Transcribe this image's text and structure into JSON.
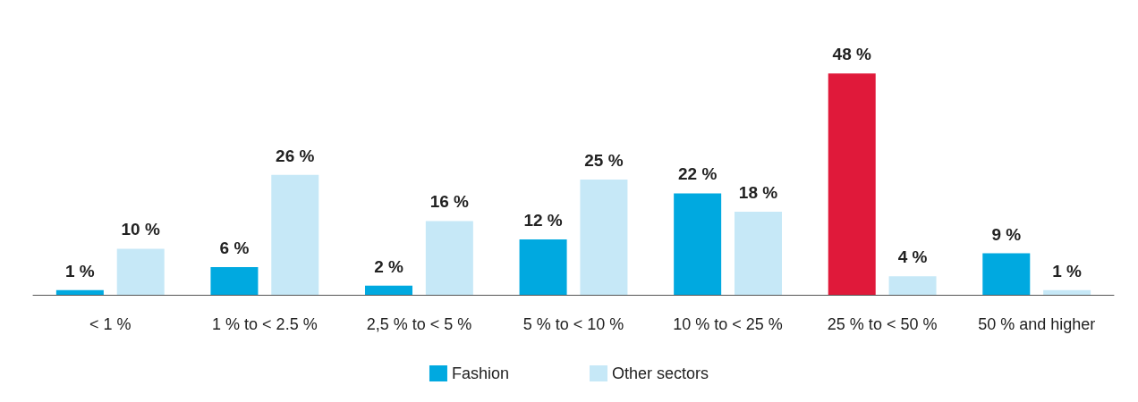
{
  "chart_data": {
    "type": "bar",
    "categories": [
      "< 1 %",
      "1 % to < 2.5 %",
      "2,5 % to < 5 %",
      "5 % to < 10 %",
      "10 % to < 25 %",
      "25 % to < 50 %",
      "50 % and higher"
    ],
    "series": [
      {
        "name": "Fashion",
        "color": "#00a9e0",
        "colors": [
          "#00a9e0",
          "#00a9e0",
          "#00a9e0",
          "#00a9e0",
          "#00a9e0",
          "#e0193a",
          "#00a9e0"
        ],
        "values": [
          1,
          6,
          2,
          12,
          22,
          48,
          9
        ],
        "value_labels": [
          "1 %",
          "6 %",
          "2 %",
          "12 %",
          "22 %",
          "48 %",
          "9 %"
        ]
      },
      {
        "name": "Other sectors",
        "color": "#c6e8f7",
        "values": [
          10,
          26,
          16,
          25,
          18,
          4,
          1
        ],
        "value_labels": [
          "10 %",
          "26 %",
          "16 %",
          "25 %",
          "18 %",
          "4 %",
          "1 %"
        ]
      }
    ],
    "legend": "bottom"
  }
}
